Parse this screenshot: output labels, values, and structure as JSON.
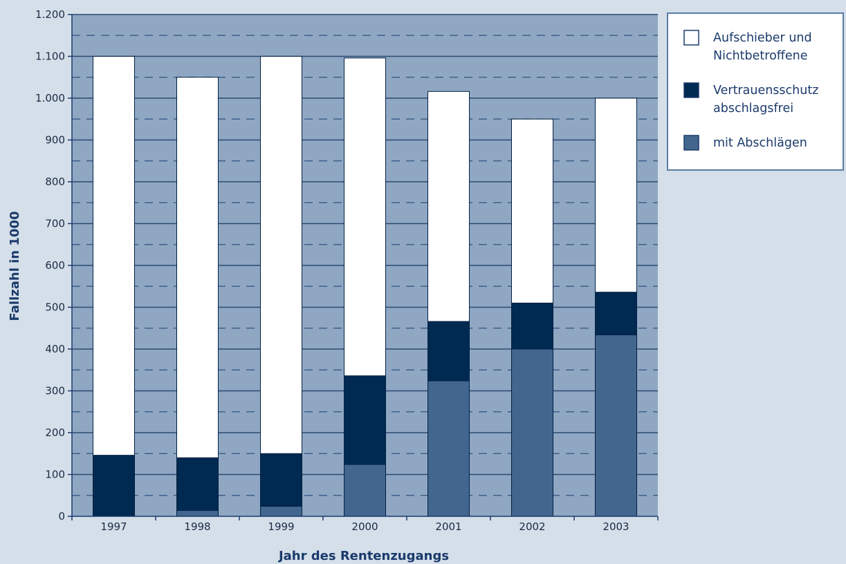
{
  "chart_data": {
    "type": "bar",
    "stacked": true,
    "categories": [
      "1997",
      "1998",
      "1999",
      "2000",
      "2001",
      "2002",
      "2003"
    ],
    "series": [
      {
        "name": "mit Abschlägen",
        "values": [
          0,
          14,
          24,
          124,
          324,
          400,
          434
        ],
        "color": "#42668e"
      },
      {
        "name": "Vertrauensschutz abschlagsfrei",
        "values": [
          146,
          126,
          126,
          212,
          142,
          110,
          102
        ],
        "color": "#002a52"
      },
      {
        "name": "Aufschieber und Nichtbetroffene",
        "values": [
          954,
          910,
          950,
          760,
          550,
          440,
          464
        ],
        "color": "#ffffff"
      }
    ],
    "legend": [
      {
        "lines": [
          "Aufschieber und",
          "Nichtbetroffene"
        ],
        "color": "#ffffff"
      },
      {
        "lines": [
          "Vertrauensschutz",
          "abschlagsfrei"
        ],
        "color": "#002a52"
      },
      {
        "lines": [
          "mit Abschlägen"
        ],
        "color": "#42668e"
      }
    ],
    "legend_position": "top-right, outside plot",
    "xlabel": "Jahr des Rentenzugangs",
    "ylabel": "Fallzahl in 1000",
    "ylim": [
      0,
      1200
    ],
    "yticks": [
      0,
      100,
      200,
      300,
      400,
      500,
      600,
      700,
      800,
      900,
      1000,
      1100,
      1200
    ],
    "ytick_labels": [
      "0",
      "100",
      "200",
      "300",
      "400",
      "500",
      "600",
      "700",
      "800",
      "900",
      "1.000",
      "1.100",
      "1.200"
    ],
    "grid": "solid lines at each 100, dashed lines at each 50",
    "colors": {
      "page_background": "#d4dfe9",
      "plot_background": "#8fa7c2",
      "grid_solid": "#2b4a73",
      "grid_dashed": "#3f608a",
      "axis": "#1b3a6b"
    }
  }
}
